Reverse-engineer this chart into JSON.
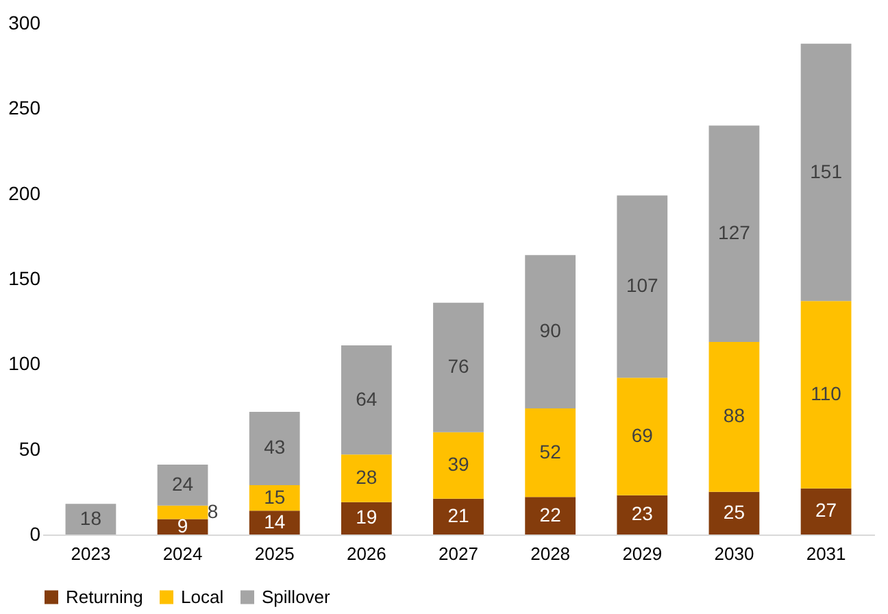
{
  "chart_data": {
    "type": "bar",
    "stacked": true,
    "categories": [
      "2023",
      "2024",
      "2025",
      "2026",
      "2027",
      "2028",
      "2029",
      "2030",
      "2031"
    ],
    "series": [
      {
        "name": "Returning",
        "color": "#843c0c",
        "values": [
          null,
          9,
          14,
          19,
          21,
          22,
          23,
          25,
          27
        ]
      },
      {
        "name": "Local",
        "color": "#ffc000",
        "values": [
          null,
          8,
          15,
          28,
          39,
          52,
          69,
          88,
          110
        ]
      },
      {
        "name": "Spillover",
        "color": "#a5a5a5",
        "values": [
          18,
          24,
          43,
          64,
          76,
          90,
          107,
          127,
          151
        ]
      }
    ],
    "ylim": [
      0,
      300
    ],
    "yticks": [
      0,
      50,
      100,
      150,
      200,
      250,
      300
    ],
    "grid": false,
    "legend": "bottom",
    "data_labels": true
  }
}
